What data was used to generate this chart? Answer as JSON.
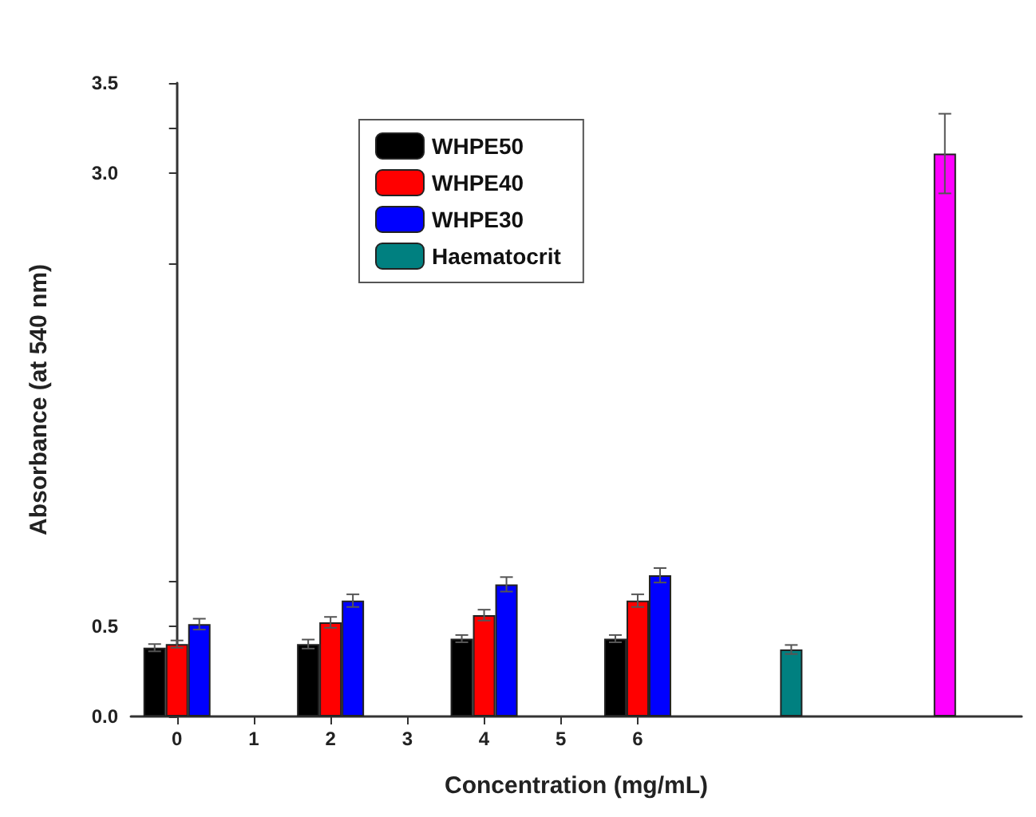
{
  "chart_data": {
    "type": "bar",
    "xlabel": "Concentration (mg/mL)",
    "ylabel": "Absorbance (at 540 nm)",
    "xlim": [
      -0.6,
      11
    ],
    "xticks": [
      0,
      1,
      2,
      3,
      4,
      5,
      6
    ],
    "ylim": [
      0,
      3.5
    ],
    "yticks": [
      {
        "value": 0,
        "label": "0.0"
      },
      {
        "value": 0.25,
        "label": null
      },
      0.5,
      {
        "value": 0.75,
        "label": null
      },
      {
        "value": 2.5,
        "label": null
      },
      {
        "value": 3,
        "label": "3.0"
      },
      {
        "value": 3.25,
        "label": null
      },
      3.5
    ],
    "legend": "top",
    "series": [
      {
        "name": "WHPE50",
        "color": "#000000",
        "x": [
          0,
          2,
          4,
          6
        ],
        "values": [
          0.38,
          0.4,
          0.43,
          0.43
        ],
        "errors": [
          0.02,
          0.025,
          0.02,
          0.02
        ]
      },
      {
        "name": "WHPE40",
        "color": "#ff0000",
        "x": [
          0,
          2,
          4,
          6
        ],
        "values": [
          0.4,
          0.52,
          0.56,
          0.64
        ],
        "errors": [
          0.02,
          0.03,
          0.03,
          0.035
        ]
      },
      {
        "name": "WHPE30",
        "color": "#0000ff",
        "x": [
          0,
          2,
          4,
          6
        ],
        "values": [
          0.51,
          0.64,
          0.73,
          0.78
        ],
        "errors": [
          0.03,
          0.035,
          0.04,
          0.04
        ]
      },
      {
        "name": "Haematocrit",
        "color": "#008080",
        "x": [
          8
        ],
        "values": [
          0.37
        ],
        "errors": [
          0.025
        ]
      },
      {
        "color": "#ff00ff",
        "x": [
          10
        ],
        "values": [
          3.11
        ],
        "errors": [
          0.22
        ]
      }
    ]
  }
}
